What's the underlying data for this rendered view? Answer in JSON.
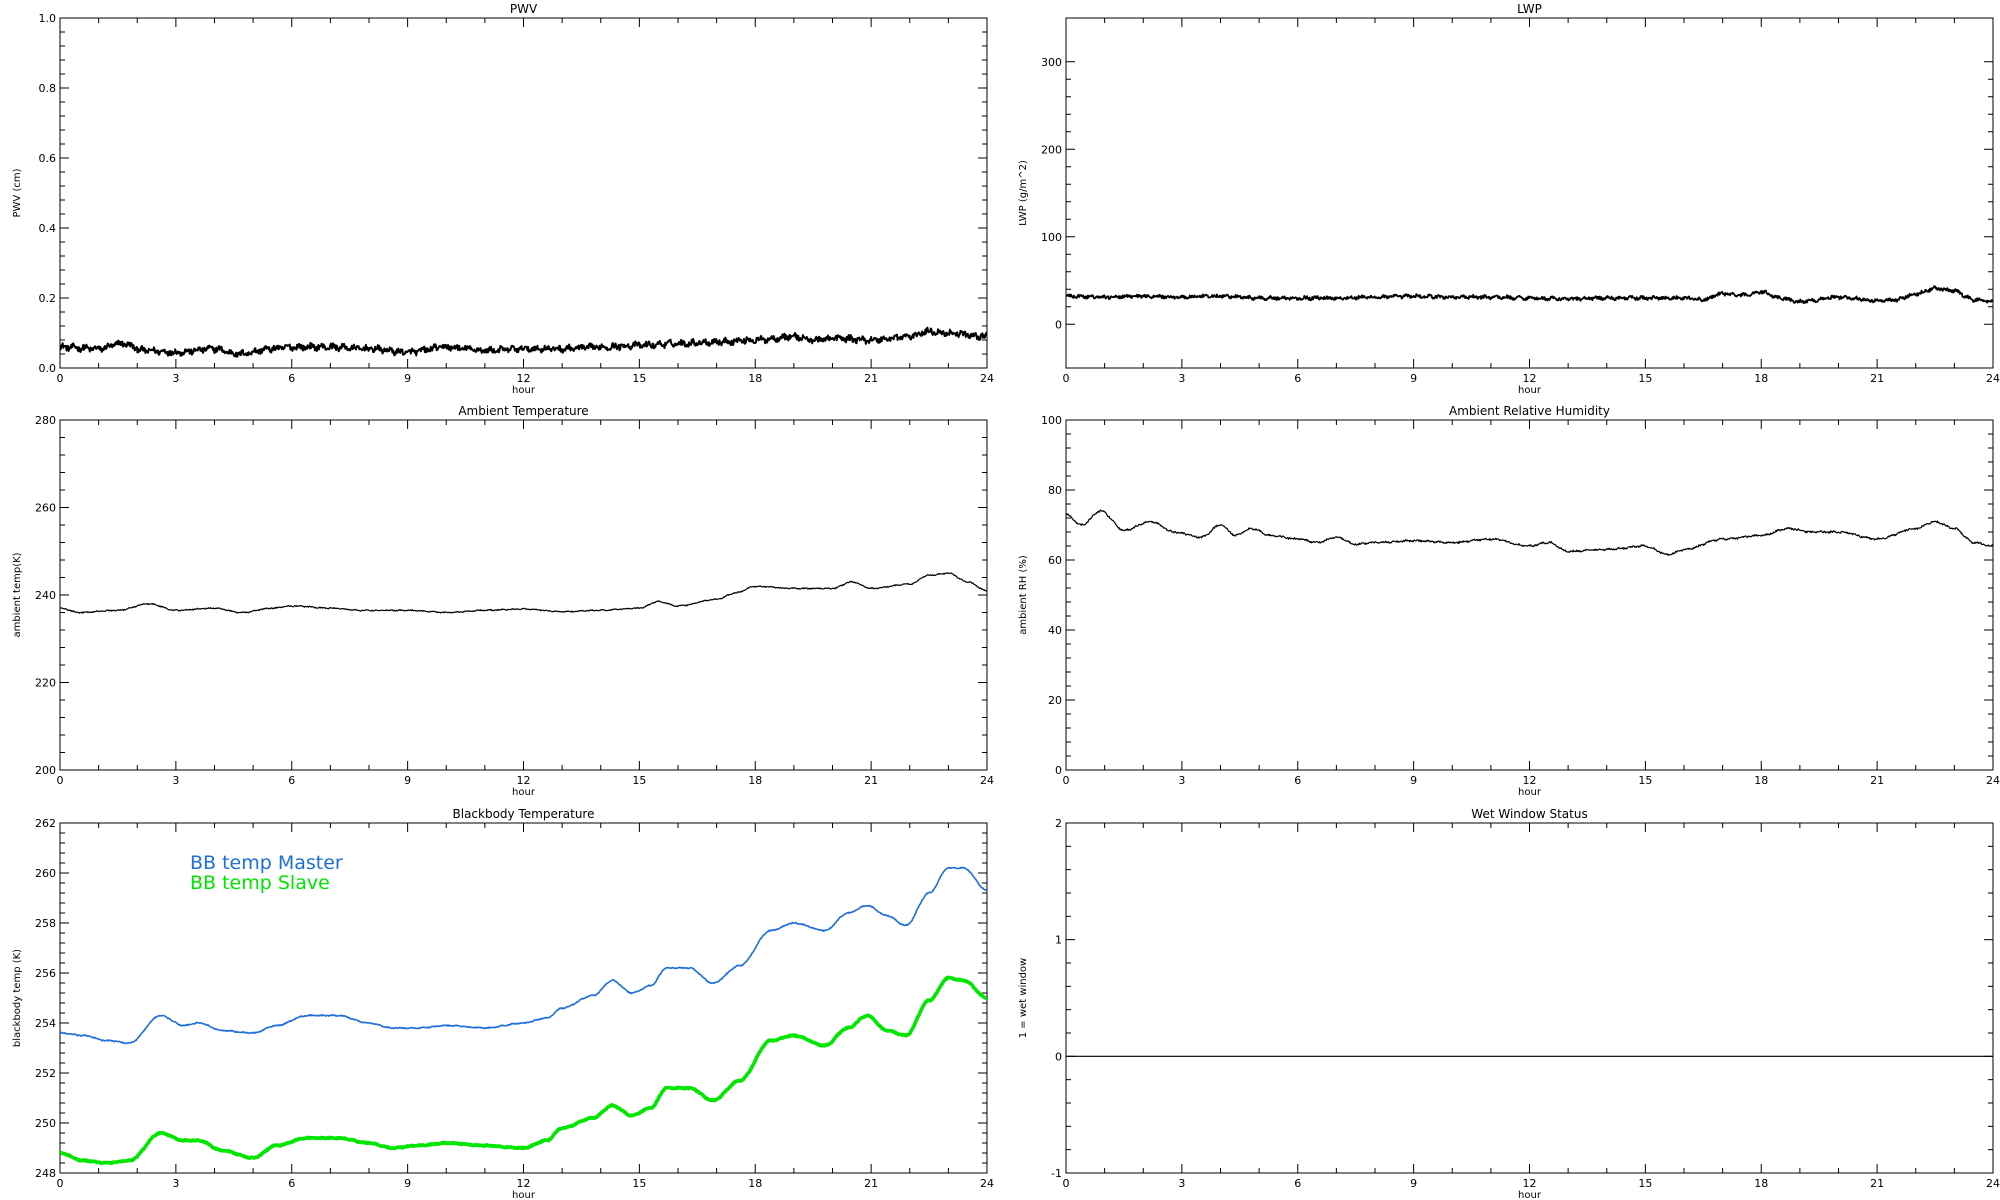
{
  "chart_data": [
    {
      "type": "line",
      "title": "PWV",
      "xlabel": "hour",
      "ylabel": "PWV (cm)",
      "xlim": [
        0,
        24
      ],
      "ylim": [
        0,
        1.0
      ],
      "xticks": [
        "0",
        "3",
        "6",
        "9",
        "12",
        "15",
        "18",
        "21",
        "24"
      ],
      "yticks": [
        "0.0",
        "0.2",
        "0.4",
        "0.6",
        "0.8",
        "1.0"
      ],
      "noise": 0.008,
      "stroke_width": 2.0,
      "series": [
        {
          "color": "#000000",
          "x": [
            0,
            1,
            1.6,
            2.2,
            3,
            4,
            4.6,
            5.5,
            6,
            7,
            8,
            9,
            10,
            10.5,
            11,
            12,
            13,
            14,
            15,
            16,
            17,
            18,
            19,
            19.5,
            20,
            21,
            22,
            22.5,
            23,
            24
          ],
          "y": [
            0.06,
            0.055,
            0.07,
            0.05,
            0.045,
            0.055,
            0.04,
            0.055,
            0.06,
            0.06,
            0.055,
            0.045,
            0.06,
            0.055,
            0.05,
            0.055,
            0.055,
            0.06,
            0.065,
            0.07,
            0.075,
            0.08,
            0.09,
            0.08,
            0.085,
            0.08,
            0.09,
            0.105,
            0.1,
            0.09
          ]
        }
      ]
    },
    {
      "type": "line",
      "title": "LWP",
      "xlabel": "hour",
      "ylabel": "LWP (g/m^2)",
      "xlim": [
        0,
        24
      ],
      "ylim": [
        -50,
        350
      ],
      "xticks": [
        "0",
        "3",
        "6",
        "9",
        "12",
        "15",
        "18",
        "21",
        "24"
      ],
      "yticks": [
        "0",
        "100",
        "200",
        "300"
      ],
      "noise": 1.8,
      "stroke_width": 1.8,
      "series": [
        {
          "color": "#000000",
          "x": [
            0,
            1,
            2,
            3,
            4,
            5,
            6,
            7,
            8,
            9,
            10,
            11,
            12,
            13,
            14,
            15,
            16,
            16.5,
            17,
            17.5,
            18,
            18.5,
            19,
            20,
            21,
            21.5,
            22,
            22.5,
            23,
            23.5,
            24
          ],
          "y": [
            32,
            31,
            32,
            31,
            32,
            30,
            30,
            30,
            31,
            32,
            31,
            31,
            30,
            29,
            30,
            30,
            30,
            28,
            35,
            33,
            37,
            30,
            26,
            31,
            27,
            28,
            35,
            41,
            38,
            28,
            26
          ]
        }
      ]
    },
    {
      "type": "line",
      "title": "Ambient Temperature",
      "xlabel": "hour",
      "ylabel": "ambient temp(K)",
      "xlim": [
        0,
        24
      ],
      "ylim": [
        200,
        280
      ],
      "xticks": [
        "0",
        "3",
        "6",
        "9",
        "12",
        "15",
        "18",
        "21",
        "24"
      ],
      "yticks": [
        "200",
        "220",
        "240",
        "260",
        "280"
      ],
      "noise": 0.12,
      "stroke_width": 1.2,
      "series": [
        {
          "color": "#000000",
          "x": [
            0,
            0.5,
            1.5,
            2.3,
            3,
            4,
            4.7,
            5.5,
            6,
            7,
            7.8,
            8.5,
            9,
            10,
            11,
            12,
            13,
            14,
            15,
            15.5,
            16,
            17,
            17.5,
            18,
            19,
            20,
            20.5,
            21,
            22,
            22.5,
            23,
            23.5,
            24
          ],
          "y": [
            237,
            236,
            236.5,
            238,
            236.5,
            237,
            236,
            237,
            237.5,
            237,
            236.5,
            236.5,
            236.5,
            236,
            236.5,
            236.8,
            236.2,
            236.5,
            237,
            238.5,
            237.5,
            239,
            240.5,
            242,
            241.5,
            241.5,
            243,
            241.5,
            242.5,
            244.5,
            245,
            243,
            241
          ]
        }
      ]
    },
    {
      "type": "line",
      "title": "Ambient Relative Humidity",
      "xlabel": "hour",
      "ylabel": "ambient RH (%)",
      "xlim": [
        0,
        24
      ],
      "ylim": [
        0,
        100
      ],
      "xticks": [
        "0",
        "3",
        "6",
        "9",
        "12",
        "15",
        "18",
        "21",
        "24"
      ],
      "yticks": [
        "0",
        "20",
        "40",
        "60",
        "80",
        "100"
      ],
      "noise": 0.25,
      "stroke_width": 1.2,
      "series": [
        {
          "color": "#000000",
          "x": [
            0,
            0.4,
            0.9,
            1.5,
            2.2,
            2.8,
            3.5,
            4.0,
            4.4,
            4.8,
            5.3,
            6,
            6.5,
            7,
            7.5,
            8,
            9,
            10,
            11,
            12,
            12.5,
            13,
            14,
            15,
            15.6,
            16,
            17,
            18,
            18.7,
            19.3,
            20,
            21,
            22,
            22.5,
            23,
            23.5,
            24
          ],
          "y": [
            73,
            70,
            74,
            68.5,
            71,
            68,
            66.5,
            70,
            67,
            69,
            67,
            66,
            65,
            66.5,
            64.5,
            65,
            65.5,
            65,
            66,
            64,
            65,
            62.5,
            63,
            64,
            61.5,
            63,
            66,
            67,
            69,
            68,
            68,
            66,
            69,
            71,
            69,
            65,
            64
          ]
        }
      ]
    },
    {
      "type": "line",
      "title": "Blackbody Temperature",
      "xlabel": "hour",
      "ylabel": "blackbody temp (K)",
      "xlim": [
        0,
        24
      ],
      "ylim": [
        248,
        262
      ],
      "xticks": [
        "0",
        "3",
        "6",
        "9",
        "12",
        "15",
        "18",
        "21",
        "24"
      ],
      "yticks": [
        "248",
        "250",
        "252",
        "254",
        "256",
        "258",
        "260",
        "262"
      ],
      "noise": 0.02,
      "legend": "top-left",
      "series": [
        {
          "name": "BB temp Master",
          "color": "#1e6fd9",
          "stroke_width": 1.6,
          "x": [
            0,
            0.6,
            1.2,
            1.8,
            2.6,
            3.2,
            3.6,
            4.2,
            5.0,
            5.6,
            6.4,
            7.2,
            8.0,
            8.6,
            9.3,
            10.0,
            11.0,
            12.0,
            12.6,
            13.0,
            13.8,
            14.3,
            14.8,
            15.3,
            15.7,
            16.3,
            16.9,
            17.6,
            18.4,
            19.0,
            19.8,
            20.4,
            20.9,
            21.4,
            21.9,
            22.5,
            23.0,
            23.4,
            24.0
          ],
          "y": [
            253.6,
            253.5,
            253.3,
            253.2,
            254.3,
            253.9,
            254.0,
            253.7,
            253.6,
            253.9,
            254.3,
            254.3,
            254.0,
            253.8,
            253.8,
            253.9,
            253.8,
            254.0,
            254.2,
            254.6,
            255.1,
            255.7,
            255.2,
            255.5,
            256.2,
            256.2,
            255.6,
            256.3,
            257.7,
            258.0,
            257.7,
            258.4,
            258.7,
            258.3,
            257.9,
            259.2,
            260.2,
            260.2,
            259.3
          ]
        },
        {
          "name": "BB temp Slave",
          "color": "#00e600",
          "stroke_width": 3.6,
          "x": [
            0,
            0.6,
            1.2,
            1.8,
            2.6,
            3.2,
            3.6,
            4.2,
            5.0,
            5.6,
            6.4,
            7.2,
            8.0,
            8.6,
            9.3,
            10.0,
            11.0,
            12.0,
            12.6,
            13.0,
            13.8,
            14.3,
            14.8,
            15.3,
            15.7,
            16.3,
            16.9,
            17.6,
            18.4,
            19.0,
            19.8,
            20.4,
            20.9,
            21.4,
            21.9,
            22.5,
            23.0,
            23.4,
            24.0
          ],
          "y": [
            248.8,
            248.5,
            248.4,
            248.5,
            249.6,
            249.3,
            249.3,
            248.9,
            248.6,
            249.1,
            249.4,
            249.4,
            249.2,
            249.0,
            249.1,
            249.2,
            249.1,
            249.0,
            249.3,
            249.8,
            250.2,
            250.7,
            250.3,
            250.6,
            251.4,
            251.4,
            250.9,
            251.7,
            253.3,
            253.5,
            253.1,
            253.8,
            254.3,
            253.7,
            253.5,
            254.9,
            255.8,
            255.7,
            255.0
          ]
        }
      ]
    },
    {
      "type": "line",
      "title": "Wet Window Status",
      "xlabel": "hour",
      "ylabel": "1 = wet window",
      "xlim": [
        0,
        24
      ],
      "ylim": [
        -1,
        2
      ],
      "xticks": [
        "0",
        "3",
        "6",
        "9",
        "12",
        "15",
        "18",
        "21",
        "24"
      ],
      "yticks": [
        "-1",
        "0",
        "1",
        "2"
      ],
      "noise": 0,
      "stroke_width": 1.2,
      "series": [
        {
          "color": "#000000",
          "x": [
            0,
            24
          ],
          "y": [
            0,
            0
          ]
        }
      ]
    }
  ]
}
